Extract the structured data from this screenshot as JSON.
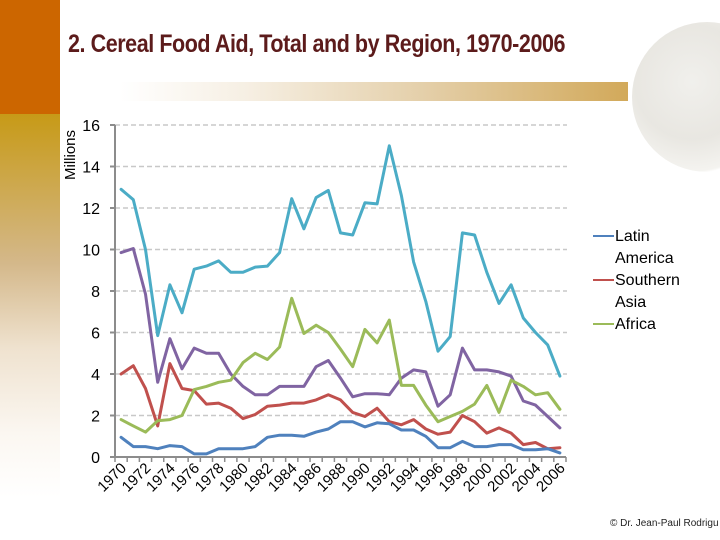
{
  "slide": {
    "title": "2. Cereal Food Aid, Total and by Region, 1970-2006",
    "credit": "© Dr. Jean-Paul Rodrigu"
  },
  "chart_data": {
    "type": "line",
    "title": "2. Cereal Food Aid, Total and by Region, 1970-2006",
    "xlabel": "",
    "ylabel": "Millions",
    "ylim": [
      0,
      16
    ],
    "yticks": [
      0,
      2,
      4,
      6,
      8,
      10,
      12,
      14,
      16
    ],
    "grid": true,
    "legend_position": "right",
    "x": [
      1970,
      1971,
      1972,
      1973,
      1974,
      1975,
      1976,
      1977,
      1978,
      1979,
      1980,
      1981,
      1982,
      1983,
      1984,
      1985,
      1986,
      1987,
      1988,
      1989,
      1990,
      1991,
      1992,
      1993,
      1994,
      1995,
      1996,
      1997,
      1998,
      1999,
      2000,
      2001,
      2002,
      2003,
      2004,
      2005,
      2006
    ],
    "xtick_labels": [
      "1970",
      "1972",
      "1974",
      "1976",
      "1978",
      "1980",
      "1982",
      "1984",
      "1986",
      "1988",
      "1990",
      "1992",
      "1994",
      "1996",
      "1998",
      "2000",
      "2002",
      "2004",
      "2006"
    ],
    "series": [
      {
        "name": "",
        "in_legend": false,
        "color": "#4bacc6",
        "values": [
          12.9,
          12.4,
          10.0,
          5.85,
          8.3,
          6.95,
          9.05,
          9.2,
          9.45,
          8.9,
          8.9,
          9.15,
          9.2,
          9.85,
          12.45,
          11.0,
          12.5,
          12.85,
          10.8,
          10.7,
          12.25,
          12.2,
          15.0,
          12.6,
          9.4,
          7.5,
          5.1,
          5.8,
          10.8,
          10.7,
          8.9,
          7.4,
          8.3,
          6.7,
          6.0,
          5.4,
          3.9
        ]
      },
      {
        "name": "",
        "in_legend": false,
        "color": "#8064a2",
        "values": [
          9.85,
          10.05,
          7.85,
          3.6,
          5.7,
          4.25,
          5.25,
          5.0,
          5.0,
          4.0,
          3.4,
          3.0,
          3.0,
          3.4,
          3.4,
          3.4,
          4.35,
          4.65,
          3.8,
          2.9,
          3.05,
          3.05,
          3.0,
          3.8,
          4.2,
          4.1,
          2.45,
          3.0,
          5.25,
          4.2,
          4.2,
          4.1,
          3.9,
          2.7,
          2.5,
          1.95,
          1.4
        ]
      },
      {
        "name": "Southern Asia",
        "in_legend": true,
        "color": "#c0504d",
        "values": [
          4.0,
          4.4,
          3.3,
          1.5,
          4.5,
          3.3,
          3.2,
          2.55,
          2.6,
          2.35,
          1.85,
          2.05,
          2.45,
          2.5,
          2.6,
          2.6,
          2.75,
          3.0,
          2.75,
          2.15,
          1.95,
          2.35,
          1.7,
          1.55,
          1.8,
          1.35,
          1.1,
          1.2,
          2.0,
          1.7,
          1.15,
          1.4,
          1.15,
          0.6,
          0.7,
          0.4,
          0.45
        ]
      },
      {
        "name": "Africa",
        "in_legend": true,
        "color": "#9bbb59",
        "values": [
          1.8,
          1.5,
          1.2,
          1.75,
          1.8,
          2.0,
          3.25,
          3.4,
          3.6,
          3.7,
          4.55,
          5.0,
          4.7,
          5.3,
          7.65,
          5.95,
          6.35,
          6.0,
          5.2,
          4.35,
          6.15,
          5.5,
          6.6,
          3.45,
          3.45,
          2.5,
          1.7,
          1.95,
          2.2,
          2.55,
          3.45,
          2.15,
          3.7,
          3.4,
          3.0,
          3.1,
          2.3
        ]
      },
      {
        "name": "Latin America",
        "in_legend": true,
        "color": "#4f81bd",
        "values": [
          0.95,
          0.5,
          0.5,
          0.4,
          0.55,
          0.5,
          0.15,
          0.15,
          0.4,
          0.4,
          0.4,
          0.5,
          0.95,
          1.05,
          1.05,
          1.0,
          1.2,
          1.35,
          1.7,
          1.7,
          1.45,
          1.65,
          1.6,
          1.3,
          1.3,
          1.0,
          0.45,
          0.45,
          0.75,
          0.5,
          0.5,
          0.6,
          0.6,
          0.35,
          0.35,
          0.4,
          0.2
        ]
      }
    ],
    "legend": [
      {
        "lines": [
          "Latin",
          "America"
        ],
        "color": "#4f81bd"
      },
      {
        "lines": [
          "Southern",
          "Asia"
        ],
        "color": "#c0504d"
      },
      {
        "lines": [
          "Africa"
        ],
        "color": "#9bbb59"
      }
    ]
  }
}
